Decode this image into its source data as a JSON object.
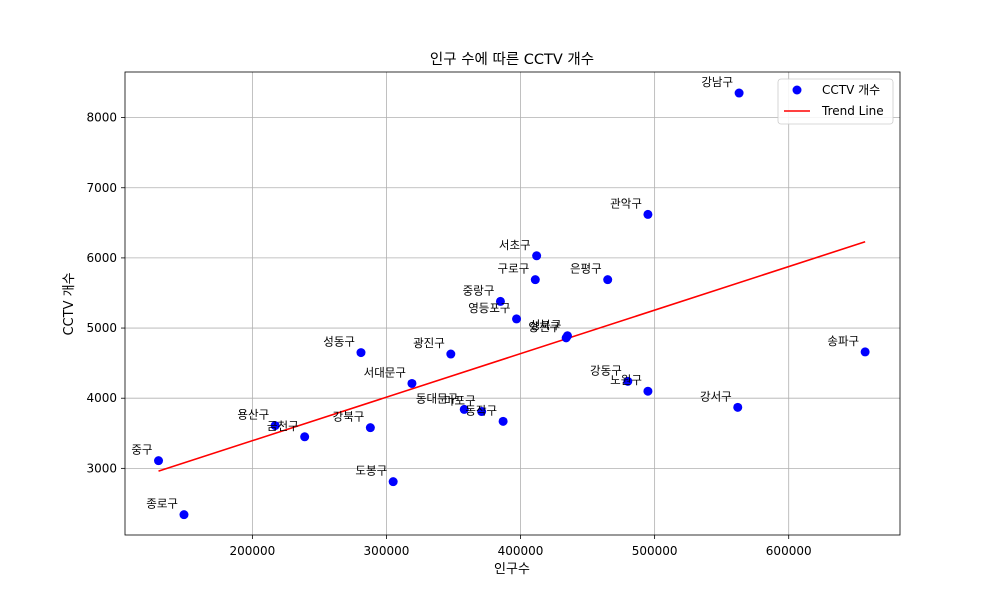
{
  "chart_data": {
    "type": "scatter",
    "title": "인구 수에 따른 CCTV 개수",
    "xlabel": "인구수",
    "ylabel": "CCTV 개수",
    "xlim": [
      105000,
      683000
    ],
    "ylim": [
      2050,
      8650
    ],
    "x_ticks": [
      200000,
      300000,
      400000,
      500000,
      600000
    ],
    "y_ticks": [
      3000,
      4000,
      5000,
      6000,
      7000,
      8000
    ],
    "x_tick_labels": [
      "200000",
      "300000",
      "400000",
      "500000",
      "600000"
    ],
    "y_tick_labels": [
      "3000",
      "4000",
      "5000",
      "6000",
      "7000",
      "8000"
    ],
    "grid": true,
    "legend_position": "top-right",
    "series": [
      {
        "name": "CCTV 개수",
        "style": "markers",
        "color": "#0000ff",
        "points": [
          {
            "label": "강남구",
            "x": 563000,
            "y": 8350
          },
          {
            "label": "관악구",
            "x": 495000,
            "y": 6620
          },
          {
            "label": "서초구",
            "x": 412000,
            "y": 6030
          },
          {
            "label": "구로구",
            "x": 411000,
            "y": 5690
          },
          {
            "label": "은평구",
            "x": 465000,
            "y": 5690
          },
          {
            "label": "중랑구",
            "x": 385000,
            "y": 5380
          },
          {
            "label": "영등포구",
            "x": 397000,
            "y": 5130
          },
          {
            "label": "성북구",
            "x": 435000,
            "y": 4890
          },
          {
            "label": "양천구",
            "x": 434000,
            "y": 4860
          },
          {
            "label": "성동구",
            "x": 281000,
            "y": 4650
          },
          {
            "label": "광진구",
            "x": 348000,
            "y": 4630
          },
          {
            "label": "송파구",
            "x": 657000,
            "y": 4660
          },
          {
            "label": "서대문구",
            "x": 319000,
            "y": 4210
          },
          {
            "label": "강동구",
            "x": 480000,
            "y": 4240
          },
          {
            "label": "노원구",
            "x": 495000,
            "y": 4100
          },
          {
            "label": "강서구",
            "x": 562000,
            "y": 3870
          },
          {
            "label": "동대문구",
            "x": 358000,
            "y": 3840
          },
          {
            "label": "마포구",
            "x": 371000,
            "y": 3810
          },
          {
            "label": "동작구",
            "x": 387000,
            "y": 3670
          },
          {
            "label": "용산구",
            "x": 217000,
            "y": 3610
          },
          {
            "label": "금천구",
            "x": 239000,
            "y": 3450
          },
          {
            "label": "강북구",
            "x": 288000,
            "y": 3580
          },
          {
            "label": "중구",
            "x": 130000,
            "y": 3110
          },
          {
            "label": "도봉구",
            "x": 305000,
            "y": 2810
          },
          {
            "label": "종로구",
            "x": 149000,
            "y": 2340
          }
        ]
      },
      {
        "name": "Trend Line",
        "style": "line",
        "color": "#ff0000",
        "x": [
          130000,
          657000
        ],
        "y": [
          2960,
          6230
        ]
      }
    ]
  }
}
